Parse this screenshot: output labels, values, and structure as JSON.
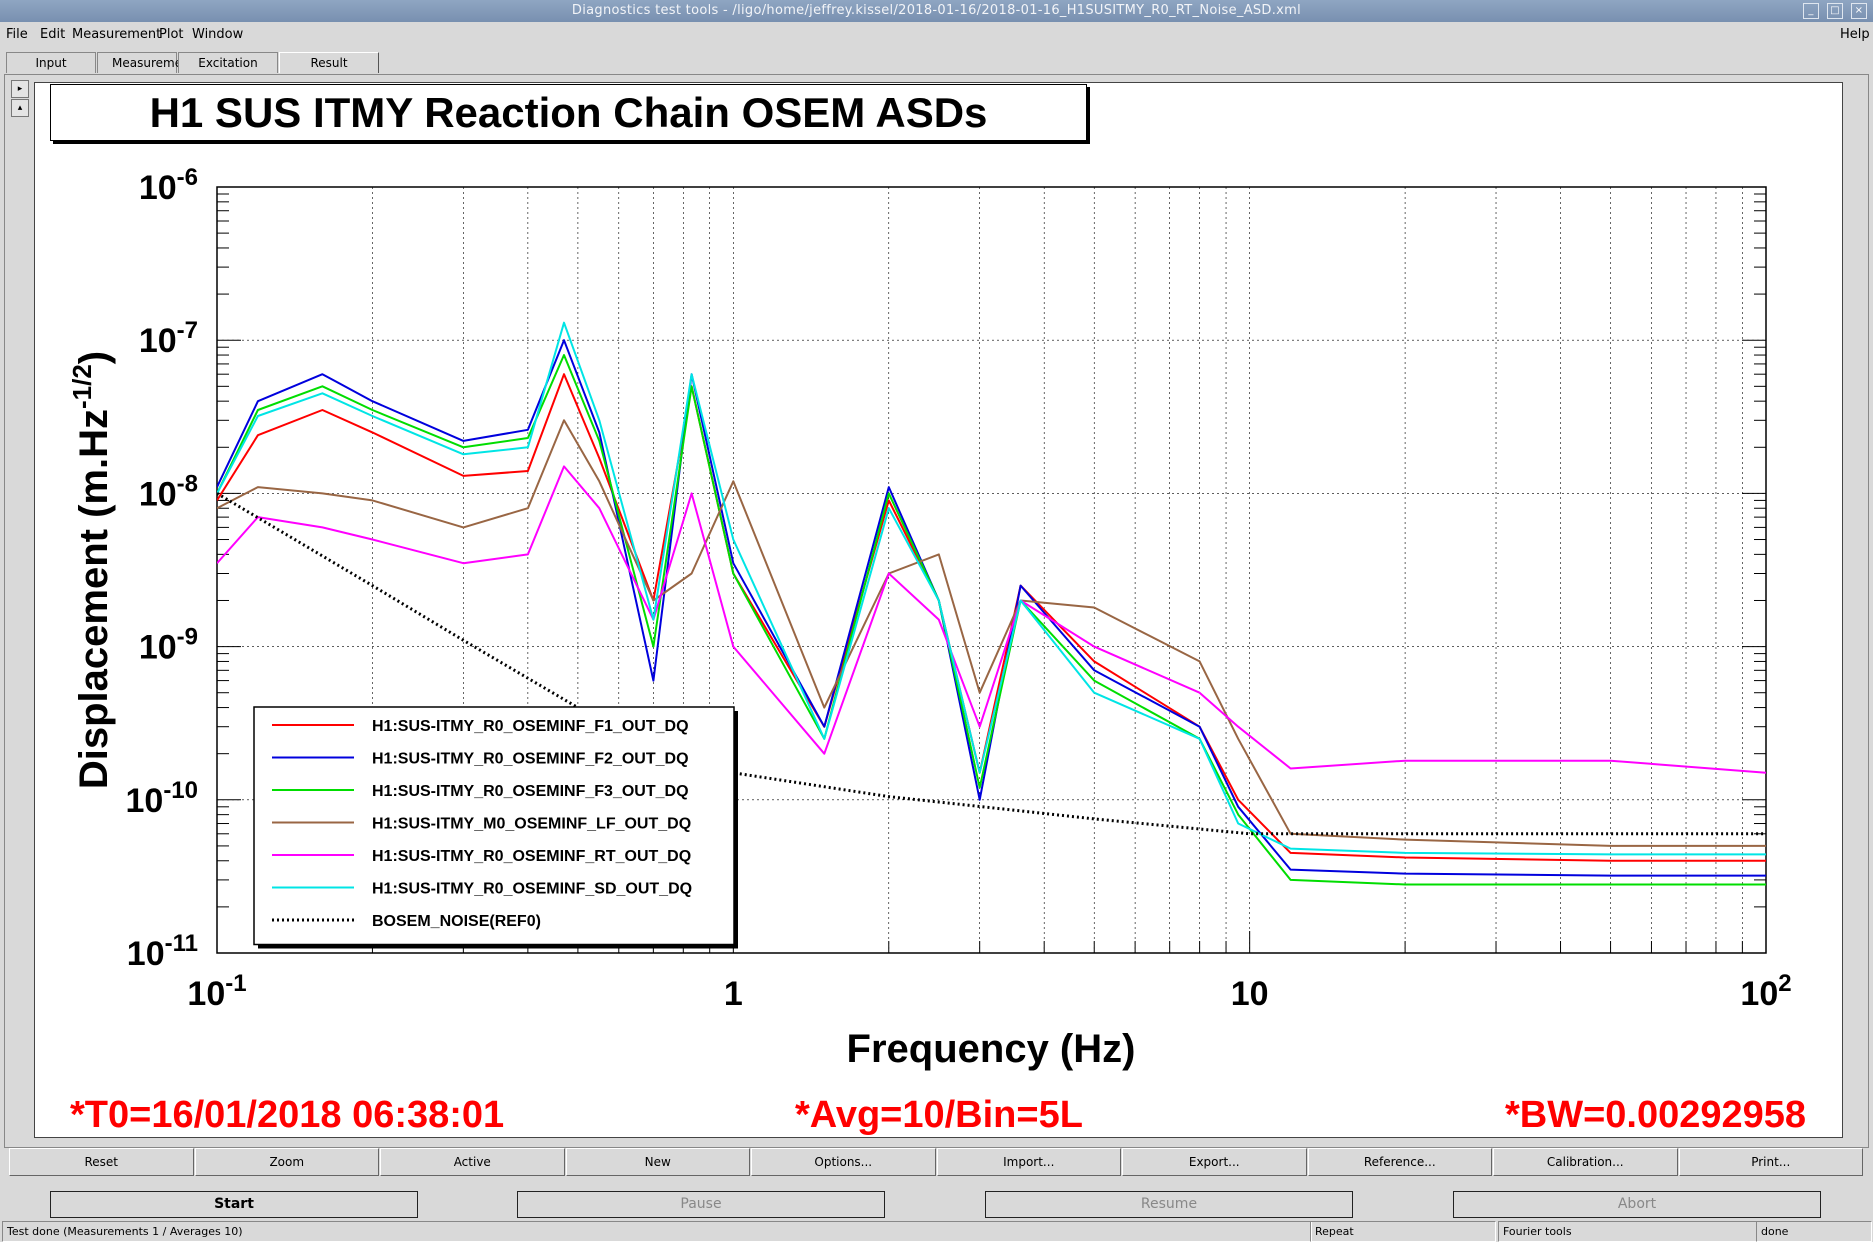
{
  "window": {
    "title": "Diagnostics test tools - /ligo/home/jeffrey.kissel/2018-01-16/2018-01-16_H1SUSITMY_R0_RT_Noise_ASD.xml",
    "controls": [
      "_",
      "□",
      "×"
    ]
  },
  "menu": {
    "file": "File",
    "edit": "Edit",
    "measurement": "Measurement",
    "plot": "Plot",
    "window": "Window",
    "help": "Help"
  },
  "tabs": [
    {
      "label": "Input"
    },
    {
      "label": "Measurement"
    },
    {
      "label": "Excitation"
    },
    {
      "label": "Result",
      "active": true
    }
  ],
  "plot_title": "H1 SUS ITMY Reaction Chain OSEM ASDs",
  "info": {
    "t0": "*T0=16/01/2018 06:38:01",
    "avg": "*Avg=10/Bin=5L",
    "bw": "*BW=0.00292958"
  },
  "result_buttons": [
    "Reset",
    "Zoom",
    "Active",
    "New",
    "Options...",
    "Import...",
    "Export...",
    "Reference...",
    "Calibration...",
    "Print..."
  ],
  "control_buttons": [
    {
      "label": "Start",
      "enabled": true
    },
    {
      "label": "Pause",
      "enabled": false
    },
    {
      "label": "Resume",
      "enabled": false
    },
    {
      "label": "Abort",
      "enabled": false
    }
  ],
  "status": {
    "message": "Test done (Measurements 1 / Averages 10)",
    "repeat": "Repeat",
    "tools": "Fourier tools",
    "state": "done"
  },
  "colors": {
    "info_text": "#ff0000",
    "titlebar": "#8296b4"
  },
  "chart_data": {
    "type": "line",
    "xlabel": "Frequency (Hz)",
    "ylabel": "Displacement (m.Hz^-1/2)",
    "xscale": "log",
    "yscale": "log",
    "xlim": [
      0.1,
      100
    ],
    "ylim": [
      1e-11,
      1e-06
    ],
    "x_ticks": [
      {
        "base": "10",
        "exp": "-1",
        "value": 0.1
      },
      {
        "base": "1",
        "exp": "",
        "value": 1
      },
      {
        "base": "10",
        "exp": "",
        "value": 10
      },
      {
        "base": "10",
        "exp": "2",
        "value": 100
      }
    ],
    "y_ticks": [
      {
        "base": "10",
        "exp": "-6",
        "value": 1e-06
      },
      {
        "base": "10",
        "exp": "-7",
        "value": 1e-07
      },
      {
        "base": "10",
        "exp": "-8",
        "value": 1e-08
      },
      {
        "base": "10",
        "exp": "-9",
        "value": 1e-09
      },
      {
        "base": "10",
        "exp": "-10",
        "value": 1e-10
      },
      {
        "base": "10",
        "exp": "-11",
        "value": 1e-11
      }
    ],
    "grid": true,
    "legend_position": "bottom-left",
    "series": [
      {
        "name": "H1:SUS-ITMY_R0_OSEMINF_F1_OUT_DQ",
        "color": "#ff0000",
        "style": "solid",
        "x": [
          0.1,
          0.12,
          0.16,
          0.2,
          0.3,
          0.4,
          0.47,
          0.55,
          0.7,
          0.83,
          1.0,
          1.5,
          2.0,
          2.5,
          3.0,
          3.6,
          5.0,
          8.0,
          9.5,
          12,
          20,
          50,
          100
        ],
        "y": [
          9e-09,
          2.4e-08,
          3.5e-08,
          2.5e-08,
          1.3e-08,
          1.4e-08,
          6e-08,
          1.7e-08,
          2e-09,
          5e-08,
          3e-09,
          3e-10,
          9e-09,
          2e-09,
          1.5e-10,
          2.5e-09,
          8e-10,
          3e-10,
          1e-10,
          4.5e-11,
          4.2e-11,
          4e-11,
          4e-11
        ]
      },
      {
        "name": "H1:SUS-ITMY_R0_OSEMINF_F2_OUT_DQ",
        "color": "#0000dd",
        "style": "solid",
        "x": [
          0.1,
          0.12,
          0.16,
          0.2,
          0.3,
          0.4,
          0.47,
          0.55,
          0.7,
          0.83,
          1.0,
          1.5,
          2.0,
          2.5,
          3.0,
          3.6,
          5.0,
          8.0,
          9.5,
          12,
          20,
          50,
          100
        ],
        "y": [
          1.1e-08,
          4e-08,
          6e-08,
          4e-08,
          2.2e-08,
          2.6e-08,
          1e-07,
          2.5e-08,
          6e-10,
          6e-08,
          3.5e-09,
          3e-10,
          1.1e-08,
          2e-09,
          1e-10,
          2.5e-09,
          7e-10,
          3e-10,
          9e-11,
          3.5e-11,
          3.3e-11,
          3.2e-11,
          3.2e-11
        ]
      },
      {
        "name": "H1:SUS-ITMY_R0_OSEMINF_F3_OUT_DQ",
        "color": "#00dd00",
        "style": "solid",
        "x": [
          0.1,
          0.12,
          0.16,
          0.2,
          0.3,
          0.4,
          0.47,
          0.55,
          0.7,
          0.83,
          1.0,
          1.5,
          2.0,
          2.5,
          3.0,
          3.6,
          5.0,
          8.0,
          9.5,
          12,
          20,
          50,
          100
        ],
        "y": [
          1e-08,
          3.5e-08,
          5e-08,
          3.5e-08,
          2e-08,
          2.3e-08,
          8e-08,
          2.2e-08,
          1e-09,
          5e-08,
          3e-09,
          2.5e-10,
          1e-08,
          2e-09,
          1.2e-10,
          2e-09,
          6e-10,
          2.5e-10,
          8e-11,
          3e-11,
          2.8e-11,
          2.8e-11,
          2.8e-11
        ]
      },
      {
        "name": "H1:SUS-ITMY_M0_OSEMINF_LF_OUT_DQ",
        "color": "#996644",
        "style": "solid",
        "x": [
          0.1,
          0.12,
          0.16,
          0.2,
          0.3,
          0.4,
          0.47,
          0.55,
          0.7,
          0.83,
          1.0,
          1.5,
          2.0,
          2.5,
          3.0,
          3.6,
          5.0,
          8.0,
          9.5,
          12,
          20,
          50,
          100
        ],
        "y": [
          8e-09,
          1.1e-08,
          1e-08,
          9e-09,
          6e-09,
          8e-09,
          3e-08,
          1.2e-08,
          2e-09,
          3e-09,
          1.2e-08,
          4e-10,
          3e-09,
          4e-09,
          5e-10,
          2e-09,
          1.8e-09,
          8e-10,
          2.5e-10,
          6e-11,
          5.5e-11,
          5e-11,
          5e-11
        ]
      },
      {
        "name": "H1:SUS-ITMY_R0_OSEMINF_RT_OUT_DQ",
        "color": "#ff00ff",
        "style": "solid",
        "x": [
          0.1,
          0.12,
          0.16,
          0.2,
          0.3,
          0.4,
          0.47,
          0.55,
          0.7,
          0.83,
          1.0,
          1.5,
          2.0,
          2.5,
          3.0,
          3.6,
          5.0,
          8.0,
          9.5,
          12,
          20,
          50,
          100
        ],
        "y": [
          3.5e-09,
          7e-09,
          6e-09,
          5e-09,
          3.5e-09,
          4e-09,
          1.5e-08,
          8e-09,
          1.5e-09,
          1e-08,
          1e-09,
          2e-10,
          3e-09,
          1.5e-09,
          3e-10,
          2e-09,
          1e-09,
          5e-10,
          3e-10,
          1.6e-10,
          1.8e-10,
          1.8e-10,
          1.5e-10
        ]
      },
      {
        "name": "H1:SUS-ITMY_R0_OSEMINF_SD_OUT_DQ",
        "color": "#00e5e5",
        "style": "solid",
        "x": [
          0.1,
          0.12,
          0.16,
          0.2,
          0.3,
          0.4,
          0.47,
          0.55,
          0.7,
          0.83,
          1.0,
          1.5,
          2.0,
          2.5,
          3.0,
          3.6,
          5.0,
          8.0,
          9.5,
          12,
          20,
          50,
          100
        ],
        "y": [
          1e-08,
          3.2e-08,
          4.5e-08,
          3.2e-08,
          1.8e-08,
          2e-08,
          1.3e-07,
          3e-08,
          1.5e-09,
          6e-08,
          5e-09,
          2.5e-10,
          8e-09,
          2e-09,
          1.5e-10,
          2e-09,
          5e-10,
          2.5e-10,
          7e-11,
          4.8e-11,
          4.5e-11,
          4.4e-11,
          4.4e-11
        ]
      },
      {
        "name": "BOSEM_NOISE(REF0)",
        "color": "#000000",
        "style": "dotted",
        "x": [
          0.1,
          0.2,
          0.3,
          0.5,
          0.7,
          1,
          2,
          5,
          10,
          20,
          50,
          100
        ],
        "y": [
          1e-08,
          2.5e-09,
          1.1e-09,
          4e-10,
          2.3e-10,
          1.5e-10,
          1.05e-10,
          7.5e-11,
          6e-11,
          6e-11,
          6e-11,
          6e-11
        ]
      }
    ]
  }
}
